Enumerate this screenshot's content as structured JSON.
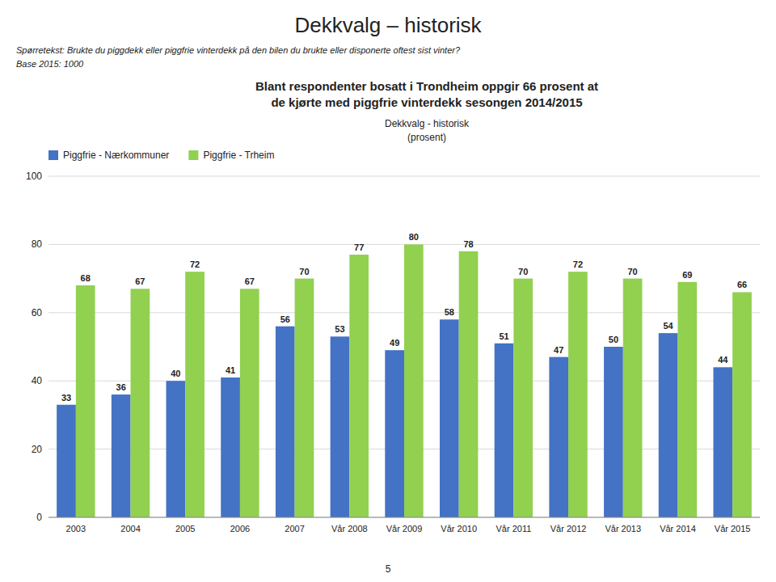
{
  "chart_data": {
    "type": "bar",
    "title": "Dekkvalg – historisk",
    "subtitle": [
      "Spørretekst: Brukte du piggdekk eller piggfrie vinterdekk på den bilen du brukte eller disponerte oftest sist vinter?",
      "Base 2015: 1000"
    ],
    "annotations": [
      "Blant respondenter bosatt i Trondheim oppgir 66 prosent at",
      "de kjørte med piggfrie vinterdekk sesongen 2014/2015",
      "Dekkvalg - historisk",
      "(prosent)",
      "5"
    ],
    "categories": [
      "2003",
      "2004",
      "2005",
      "2006",
      "2007",
      "Vår 2008",
      "Vår 2009",
      "Vår 2010",
      "Vår 2011",
      "Vår 2012",
      "Vår 2013",
      "Vår 2014",
      "Vår 2015"
    ],
    "series": [
      {
        "name": "Piggfrie - Nærkommuner",
        "color": "#4472C4",
        "values": [
          33,
          36,
          40,
          41,
          56,
          53,
          49,
          58,
          51,
          47,
          50,
          54,
          44
        ]
      },
      {
        "name": "Piggfrie - Trheim",
        "color": "#92D050",
        "values": [
          68,
          67,
          72,
          67,
          70,
          77,
          80,
          78,
          70,
          72,
          70,
          69,
          66
        ]
      }
    ],
    "ylim": [
      0,
      100
    ],
    "yticks": [
      0,
      20,
      40,
      60,
      80,
      100
    ],
    "grid": true,
    "legend": "upper left",
    "data_labels": true
  }
}
